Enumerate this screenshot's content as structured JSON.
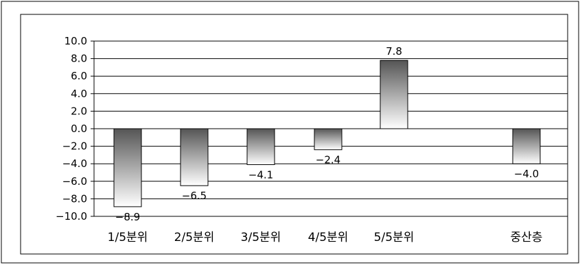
{
  "chart_data": {
    "type": "bar",
    "categories": [
      "1/5분위",
      "2/5분위",
      "3/5분위",
      "4/5분위",
      "5/5분위",
      "중산층"
    ],
    "values": [
      -8.9,
      -6.5,
      -4.1,
      -2.4,
      7.8,
      -4.0
    ],
    "value_labels": [
      "−8.9",
      "−6.5",
      "−4.1",
      "−2.4",
      "7.8",
      "−4.0"
    ],
    "y_ticks": [
      "10.0",
      "8.0",
      "6.0",
      "4.0",
      "2.0",
      "0.0",
      "−2.0",
      "−4.0",
      "−6.0",
      "−8.0",
      "−10.0"
    ],
    "ylim": [
      -10,
      10
    ],
    "title": "",
    "xlabel": "",
    "ylabel": "",
    "grid": true,
    "colors": {
      "bar_dark": "#555555",
      "bar_light": "#ffffff",
      "grid": "#000000",
      "border": "#000000"
    }
  }
}
